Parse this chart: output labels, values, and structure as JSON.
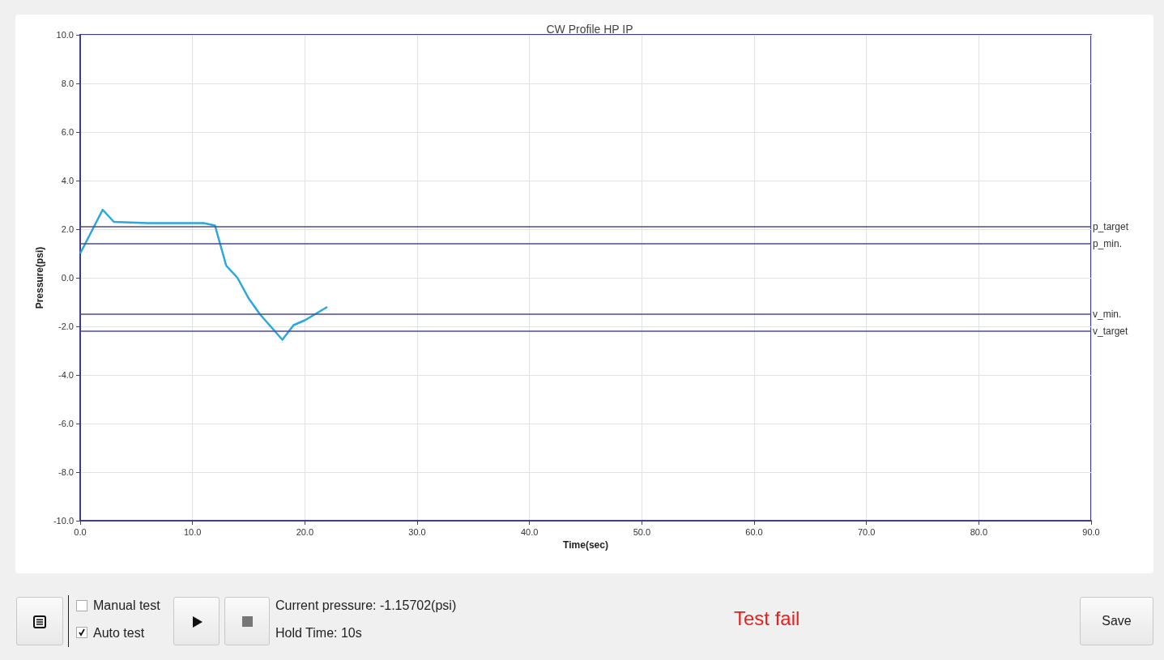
{
  "chart_data": {
    "type": "line",
    "title": "CW Profile HP IP",
    "xlabel": "Time(sec)",
    "ylabel": "Pressure(psi)",
    "x": [
      0,
      2,
      3,
      6,
      11,
      12,
      13,
      14,
      15,
      16,
      18,
      19,
      20,
      22
    ],
    "series": [
      {
        "color": "#2aa7dc",
        "values": [
          1.0,
          2.8,
          2.3,
          2.25,
          2.25,
          2.15,
          0.5,
          0.0,
          -0.85,
          -1.5,
          -2.55,
          -1.95,
          -1.75,
          -1.2
        ]
      }
    ],
    "xlim": [
      0,
      90
    ],
    "xticks": [
      {
        "value": 0,
        "label": "0.0"
      },
      {
        "value": 10,
        "label": "10.0"
      },
      {
        "value": 20,
        "label": "20.0"
      },
      {
        "value": 30,
        "label": "30.0"
      },
      {
        "value": 40,
        "label": "40.0"
      },
      {
        "value": 50,
        "label": "50.0"
      },
      {
        "value": 60,
        "label": "60.0"
      },
      {
        "value": 70,
        "label": "70.0"
      },
      {
        "value": 80,
        "label": "80.0"
      },
      {
        "value": 90,
        "label": "90.0"
      }
    ],
    "ylim": [
      -10,
      10
    ],
    "yticks": [
      {
        "value": -10,
        "label": "-10.0"
      },
      {
        "value": -8,
        "label": "-8.0"
      },
      {
        "value": -6,
        "label": "-6.0"
      },
      {
        "value": -4,
        "label": "-4.0"
      },
      {
        "value": -2,
        "label": "-2.0"
      },
      {
        "value": 0,
        "label": "0.0"
      },
      {
        "value": 2,
        "label": "2.0"
      },
      {
        "value": 4,
        "label": "4.0"
      },
      {
        "value": 6,
        "label": "6.0"
      },
      {
        "value": 8,
        "label": "8.0"
      },
      {
        "value": 10,
        "label": "10.0"
      }
    ],
    "ref_lines": [
      {
        "axis": "y",
        "value": 2.1,
        "label": "p_target",
        "color": "#4b4b8f"
      },
      {
        "axis": "y",
        "value": 1.4,
        "label": "p_min.",
        "color": "#4b4b8f"
      },
      {
        "axis": "y",
        "value": -1.5,
        "label": "v_min.",
        "color": "#4b4b8f"
      },
      {
        "axis": "y",
        "value": -2.2,
        "label": "v_target",
        "color": "#4b4b8f"
      }
    ],
    "grid": true,
    "marker": "none",
    "line_style": "solid",
    "annotations": [
      "Manual test",
      "Auto test",
      "Current pressure: -1.15702(psi)",
      "Hold Time: 10s",
      "Test fail",
      "Save"
    ]
  }
}
